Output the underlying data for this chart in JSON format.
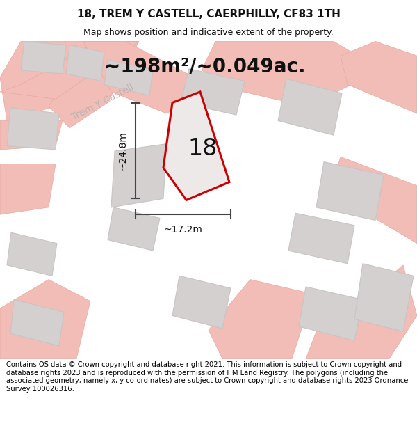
{
  "title": "18, TREM Y CASTELL, CAERPHILLY, CF83 1TH",
  "subtitle": "Map shows position and indicative extent of the property.",
  "area_text": "~198m²/~0.049ac.",
  "number_label": "18",
  "dim_vertical": "~24.8m",
  "dim_horizontal": "~17.2m",
  "street_label": "Trem Y Castell",
  "footer_text": "Contains OS data © Crown copyright and database right 2021. This information is subject to Crown copyright and database rights 2023 and is reproduced with the permission of HM Land Registry. The polygons (including the associated geometry, namely x, y co-ordinates) are subject to Crown copyright and database rights 2023 Ordnance Survey 100026316.",
  "map_bg": "#ede9e9",
  "plot_fill": "#ede9e9",
  "plot_edge": "#cc0000",
  "road_color": "#f2bdb6",
  "road_edge": "#e8a8a0",
  "building_color": "#d4d0d0",
  "building_edge": "#c8c4c4",
  "street_color": "#b8b4b4",
  "dim_line_color": "#444444",
  "title_fontsize": 11,
  "subtitle_fontsize": 9,
  "area_fontsize": 20,
  "number_fontsize": 24,
  "dim_fontsize": 10,
  "street_fontsize": 10,
  "footer_fontsize": 7.2,
  "title_color": "#111111",
  "subtitle_color": "#111111"
}
